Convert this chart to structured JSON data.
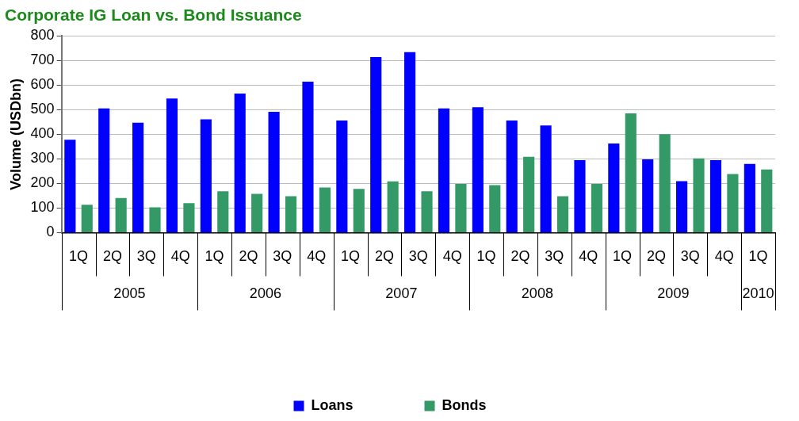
{
  "chart_data": {
    "type": "bar",
    "title": "Corporate IG Loan vs. Bond Issuance",
    "ylabel": "Volume (USDbn)",
    "categories": [
      "1Q",
      "2Q",
      "3Q",
      "4Q",
      "1Q",
      "2Q",
      "3Q",
      "4Q",
      "1Q",
      "2Q",
      "3Q",
      "4Q",
      "1Q",
      "2Q",
      "3Q",
      "4Q",
      "1Q",
      "2Q",
      "3Q",
      "4Q",
      "1Q"
    ],
    "annotations": [
      "2005",
      "2006",
      "2007",
      "2008",
      "2009",
      "2010"
    ],
    "series": [
      {
        "name": "Loans",
        "color": "#0000ff",
        "values": [
          378,
          505,
          447,
          545,
          461,
          565,
          491,
          614,
          456,
          714,
          734,
          505,
          510,
          456,
          436,
          295,
          362,
          298,
          209,
          295,
          279
        ]
      },
      {
        "name": "Bonds",
        "color": "#339966",
        "values": [
          113,
          141,
          103,
          120,
          168,
          158,
          148,
          183,
          178,
          208,
          168,
          198,
          193,
          308,
          148,
          198,
          485,
          400,
          302,
          238,
          257
        ]
      }
    ],
    "ylim": [
      0,
      800
    ],
    "yticks": [
      0,
      100,
      200,
      300,
      400,
      500,
      600,
      700,
      800
    ],
    "grid": "y",
    "legend": "bottom"
  }
}
